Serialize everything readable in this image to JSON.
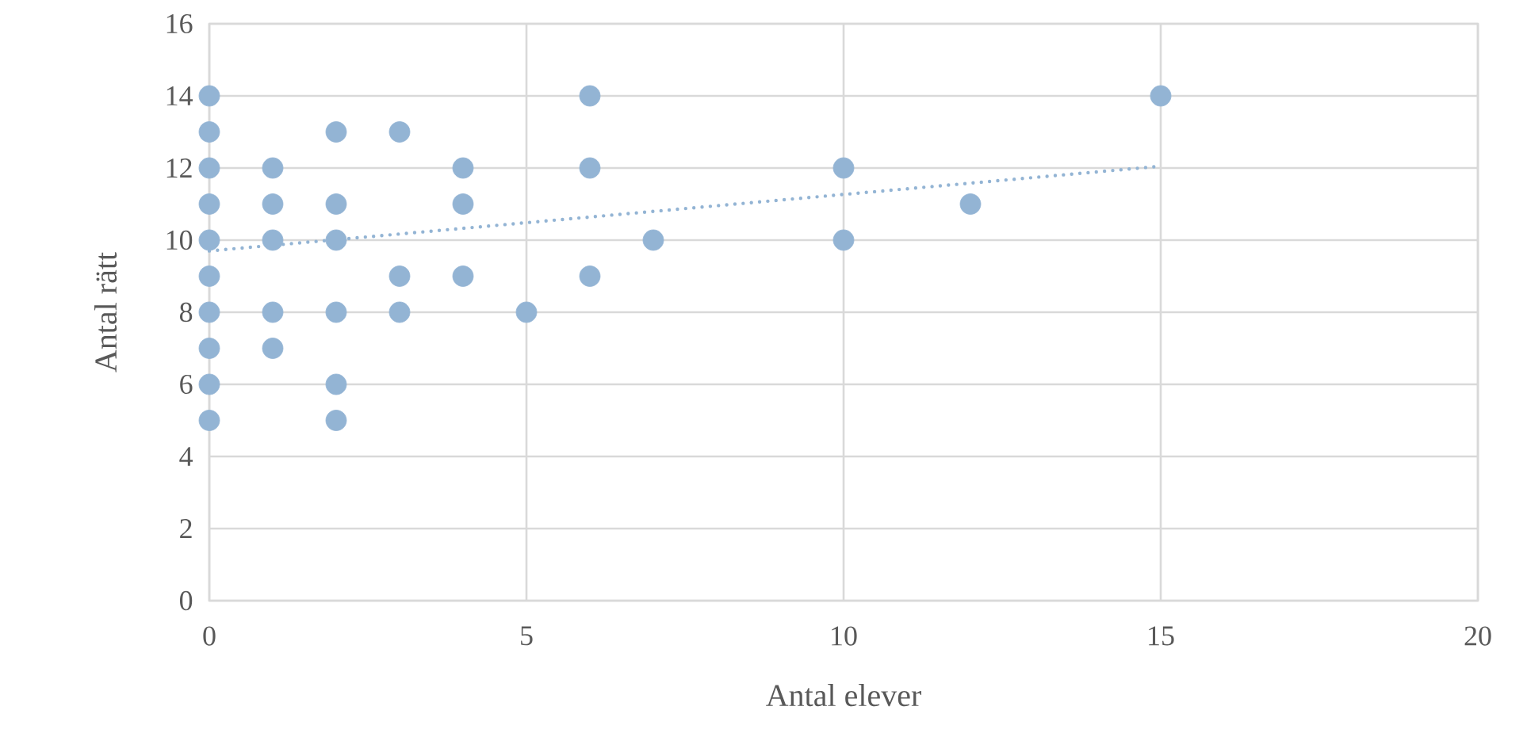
{
  "chart_data": {
    "type": "scatter",
    "xlabel": "Antal elever",
    "ylabel": "Antal rätt",
    "xlim": [
      0,
      20
    ],
    "xticks": [
      0,
      5,
      10,
      15,
      20
    ],
    "ylim": [
      0,
      16
    ],
    "yticks": [
      0,
      2,
      4,
      6,
      8,
      10,
      12,
      14,
      16
    ],
    "grid": true,
    "series": [
      {
        "marker": "circle",
        "color": "#93b4d4",
        "x": [
          0,
          0,
          0,
          0,
          0,
          0,
          0,
          0,
          0,
          0,
          1,
          1,
          1,
          1,
          1,
          2,
          2,
          2,
          2,
          2,
          2,
          3,
          3,
          3,
          4,
          4,
          4,
          5,
          6,
          6,
          6,
          7,
          10,
          10,
          12,
          15
        ],
        "values": [
          14,
          13,
          12,
          11,
          10,
          9,
          8,
          7,
          6,
          5,
          12,
          11,
          10,
          8,
          7,
          13,
          11,
          10,
          8,
          6,
          5,
          13,
          9,
          8,
          12,
          11,
          9,
          8,
          14,
          12,
          9,
          10,
          12,
          10,
          11,
          14
        ]
      },
      {
        "type": "line",
        "line_style": "dotted",
        "marker": "none",
        "color": "#93b4d4",
        "x": [
          0,
          15
        ],
        "values": [
          9.7,
          12.05
        ]
      }
    ]
  }
}
